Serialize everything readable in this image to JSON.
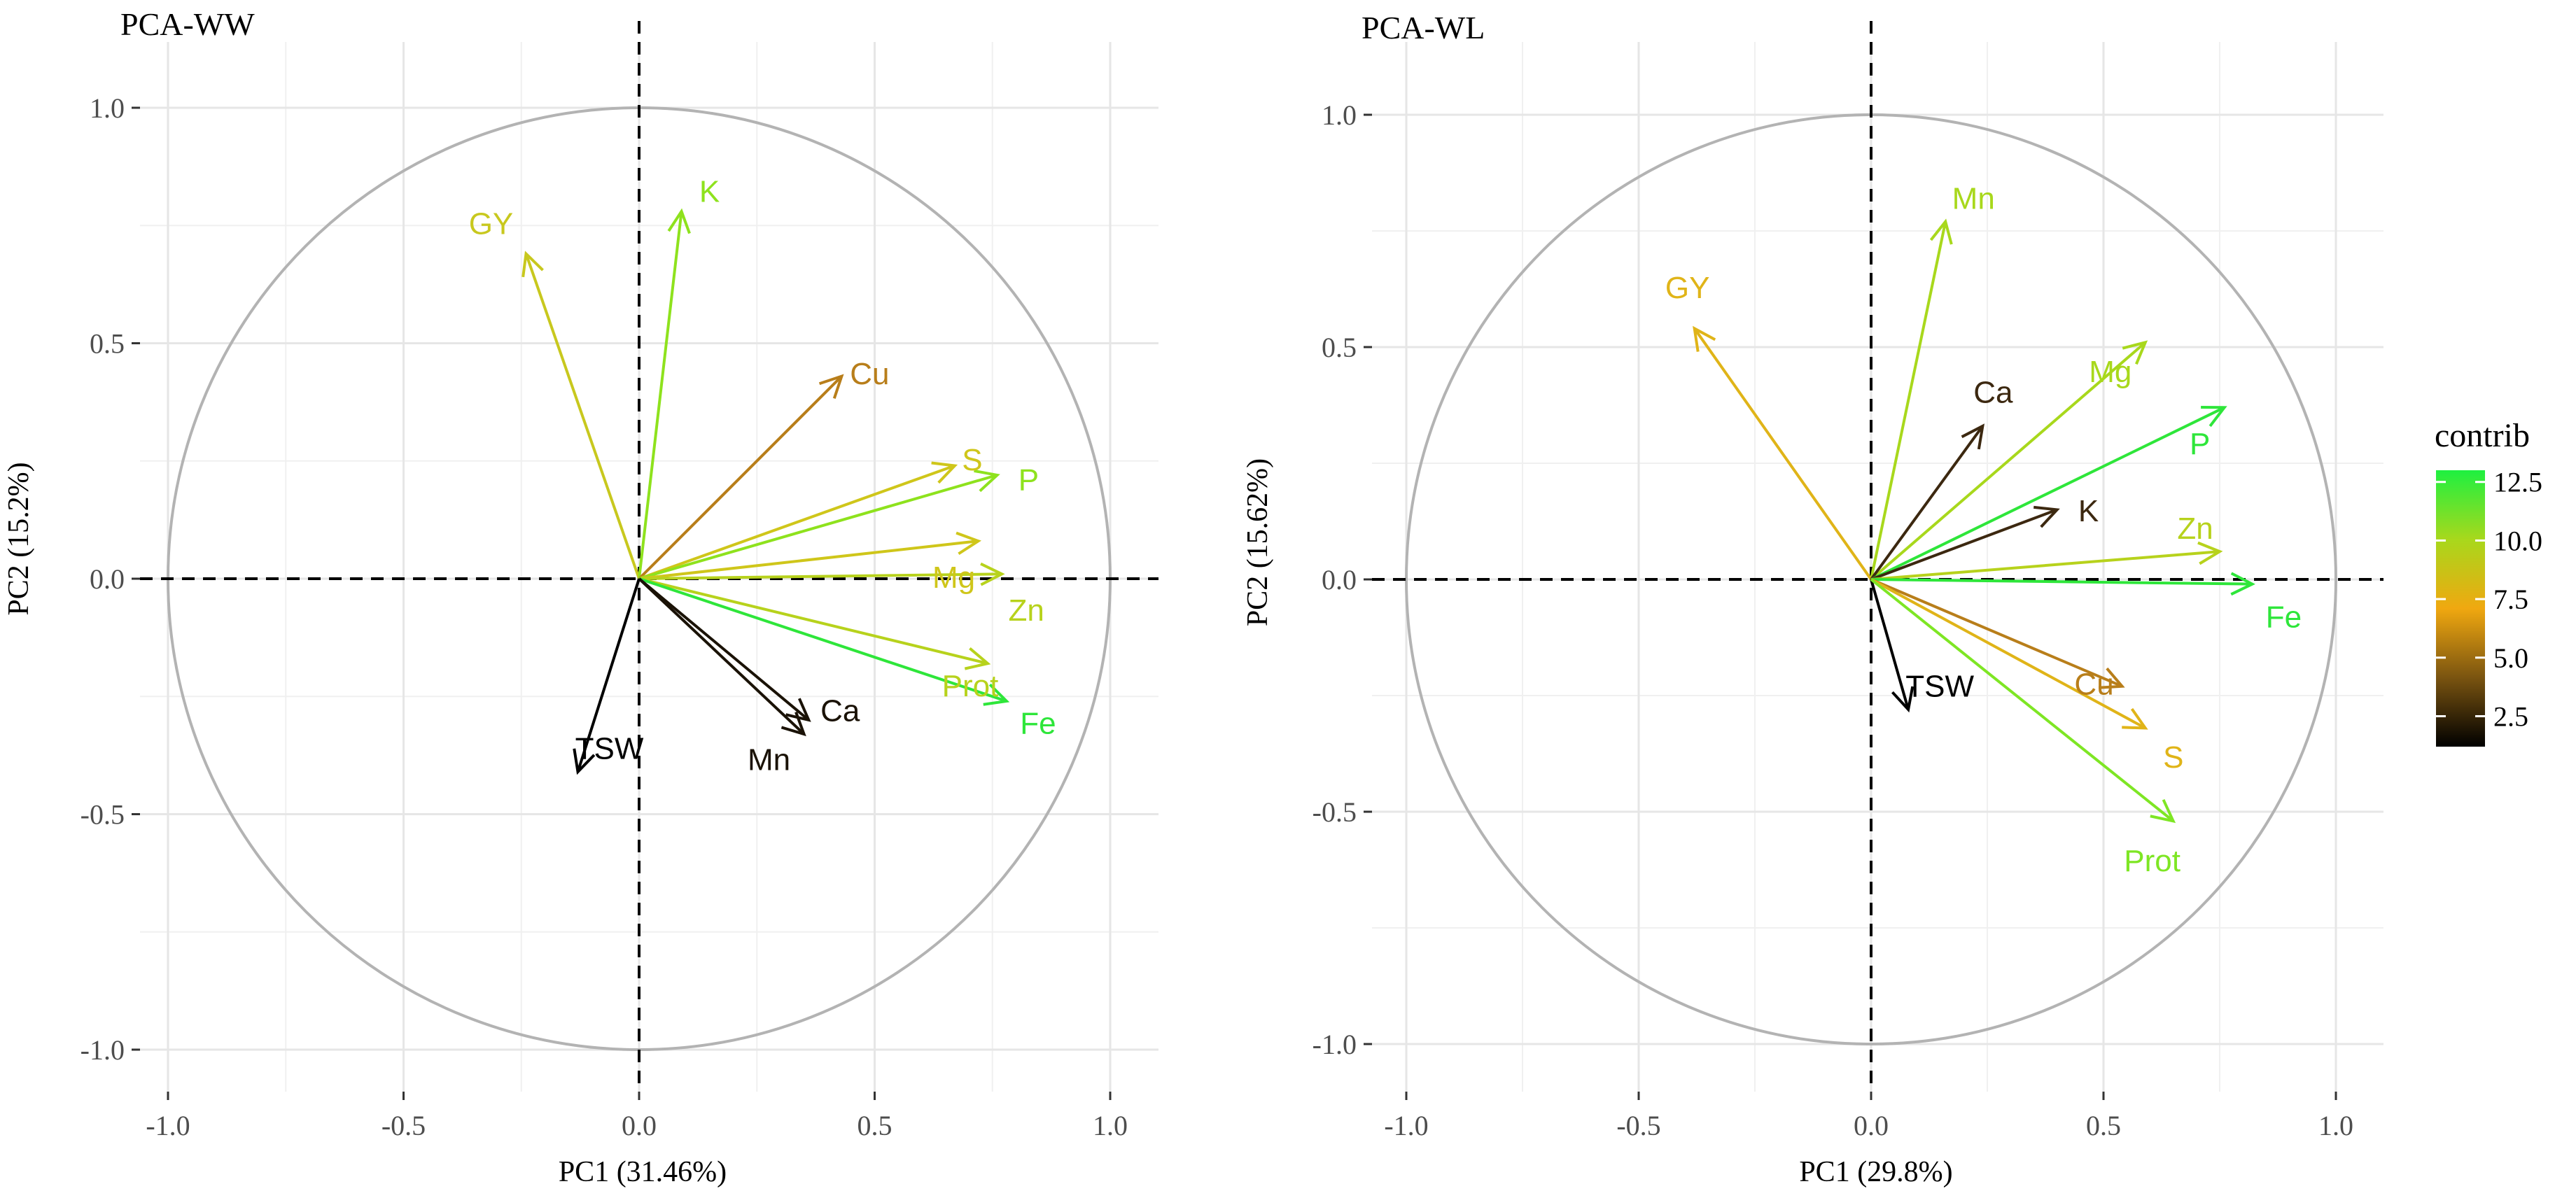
{
  "chart_data": [
    {
      "type": "scatter",
      "subtype": "pca-variable-correlation-circle",
      "title": "PCA-WW",
      "xlabel": "PC1 (31.46%)",
      "ylabel": "PC2 (15.2%)",
      "xlim": [
        -1.1,
        1.1
      ],
      "ylim": [
        -1.05,
        1.05
      ],
      "xticks": [
        -1.0,
        -0.5,
        0.0,
        0.5,
        1.0
      ],
      "xtick_labels": [
        "-1.0",
        "-0.5",
        "0.0",
        "0.5",
        "1.0"
      ],
      "yticks": [
        -1.0,
        -0.5,
        0.0,
        0.5,
        1.0
      ],
      "ytick_labels": [
        "-1.0",
        "-0.5",
        "0.0",
        "0.5",
        "1.0"
      ],
      "grid": true,
      "unit_circle": true,
      "variables": [
        {
          "name": "GY",
          "x": -0.24,
          "y": 0.69,
          "contrib": 9.5,
          "color": "#c8c81e"
        },
        {
          "name": "K",
          "x": 0.09,
          "y": 0.78,
          "contrib": 11.8,
          "color": "#8ee21d"
        },
        {
          "name": "Cu",
          "x": 0.43,
          "y": 0.43,
          "contrib": 6.8,
          "color": "#b87e1a"
        },
        {
          "name": "S",
          "x": 0.67,
          "y": 0.24,
          "contrib": 9.8,
          "color": "#cfc61a"
        },
        {
          "name": "P",
          "x": 0.76,
          "y": 0.22,
          "contrib": 11.6,
          "color": "#8ee21d"
        },
        {
          "name": "Mg",
          "x": 0.72,
          "y": 0.08,
          "contrib": 9.9,
          "color": "#cfc61a"
        },
        {
          "name": "Zn",
          "x": 0.77,
          "y": 0.01,
          "contrib": 10.8,
          "color": "#b7d21c"
        },
        {
          "name": "Prot",
          "x": 0.74,
          "y": -0.18,
          "contrib": 10.6,
          "color": "#b7d21c"
        },
        {
          "name": "Fe",
          "x": 0.78,
          "y": -0.26,
          "contrib": 12.8,
          "color": "#2ee63a"
        },
        {
          "name": "Ca",
          "x": 0.36,
          "y": -0.3,
          "contrib": 1.9,
          "color": "#1a1206"
        },
        {
          "name": "Mn",
          "x": 0.35,
          "y": -0.33,
          "contrib": 1.8,
          "color": "#1a1206"
        },
        {
          "name": "TSW",
          "x": -0.13,
          "y": -0.41,
          "contrib": 1.3,
          "color": "#000000"
        }
      ]
    },
    {
      "type": "scatter",
      "subtype": "pca-variable-correlation-circle",
      "title": "PCA-WL",
      "xlabel": "PC1 (29.8%)",
      "ylabel": "PC2 (15.62%)",
      "xlim": [
        -1.1,
        1.1
      ],
      "ylim": [
        -1.05,
        1.05
      ],
      "xticks": [
        -1.0,
        -0.5,
        0.0,
        0.5,
        1.0
      ],
      "xtick_labels": [
        "-1.0",
        "-0.5",
        "0.0",
        "0.5",
        "1.0"
      ],
      "yticks": [
        -1.0,
        -0.5,
        0.0,
        0.5,
        1.0
      ],
      "ytick_labels": [
        "-1.0",
        "-0.5",
        "0.0",
        "0.5",
        "1.0"
      ],
      "grid": true,
      "unit_circle": true,
      "variables": [
        {
          "name": "Mn",
          "x": 0.16,
          "y": 0.77,
          "contrib": 10.5,
          "color": "#a8d81c"
        },
        {
          "name": "GY",
          "x": -0.38,
          "y": 0.54,
          "contrib": 8.5,
          "color": "#e0b418"
        },
        {
          "name": "Mg",
          "x": 0.59,
          "y": 0.51,
          "contrib": 10.6,
          "color": "#a8d81c"
        },
        {
          "name": "Ca",
          "x": 0.24,
          "y": 0.33,
          "contrib": 3.2,
          "color": "#3c2810"
        },
        {
          "name": "P",
          "x": 0.76,
          "y": 0.37,
          "contrib": 12.9,
          "color": "#2ee63a"
        },
        {
          "name": "K",
          "x": 0.4,
          "y": 0.15,
          "contrib": 2.8,
          "color": "#3c2810"
        },
        {
          "name": "Zn",
          "x": 0.75,
          "y": 0.06,
          "contrib": 10.6,
          "color": "#b7d21c"
        },
        {
          "name": "Fe",
          "x": 0.82,
          "y": -0.01,
          "contrib": 12.5,
          "color": "#2ee63a"
        },
        {
          "name": "Cu",
          "x": 0.54,
          "y": -0.23,
          "contrib": 6.5,
          "color": "#b87e1a"
        },
        {
          "name": "S",
          "x": 0.59,
          "y": -0.32,
          "contrib": 8.6,
          "color": "#e0b418"
        },
        {
          "name": "TSW",
          "x": 0.08,
          "y": -0.28,
          "contrib": 1.5,
          "color": "#000000"
        },
        {
          "name": "Prot",
          "x": 0.65,
          "y": -0.52,
          "contrib": 11.9,
          "color": "#7ee624"
        }
      ]
    }
  ],
  "legend": {
    "title": "contrib",
    "ticks": [
      "12.5",
      "10.0",
      "7.5",
      "5.0",
      "2.5"
    ],
    "tick_values": [
      12.5,
      10.0,
      7.5,
      5.0,
      2.5
    ],
    "range": [
      1.2,
      13.0
    ],
    "gradient_colors": [
      "#000000",
      "#7a5410",
      "#f0a810",
      "#a8d81c",
      "#1ef040"
    ]
  }
}
